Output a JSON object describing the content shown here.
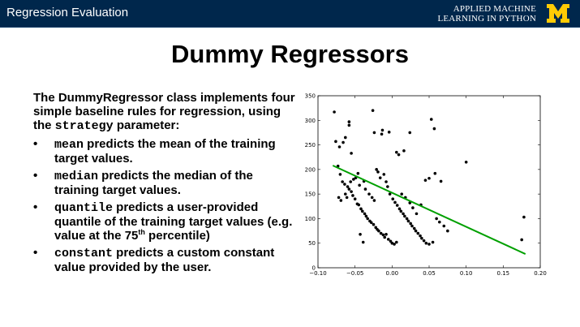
{
  "header": {
    "title": "Regression Evaluation",
    "course_line1": "APPLIED MACHINE",
    "course_line2": "LEARNING IN PYTHON",
    "logo_letter": "M",
    "colors": {
      "bar": "#00274c",
      "maize": "#ffcb05"
    }
  },
  "slide": {
    "title": "Dummy Regressors",
    "intro_1": "The DummyRegressor class implements four simple baseline rules for regression, using the ",
    "intro_code": "strategy",
    "intro_2": " parameter:",
    "bullets": [
      {
        "code": "mean",
        "text": " predicts the mean of the training target values."
      },
      {
        "code": "median",
        "text": " predicts the median of the training target values."
      },
      {
        "code": "quantile",
        "text": " predicts a user-provided quantile of the training target values (e.g. value at the 75",
        "sup": "th",
        "text_after": " percentile)"
      },
      {
        "code": "constant",
        "text": " predicts a custom constant value provided by the user."
      }
    ],
    "bullet_symbol": "•"
  },
  "chart_data": {
    "type": "scatter",
    "xlim": [
      -0.1,
      0.2
    ],
    "ylim": [
      0,
      350
    ],
    "xticks": [
      "−0.10",
      "−0.05",
      "0.00",
      "0.05",
      "0.10",
      "0.15",
      "0.20"
    ],
    "yticks": [
      "0",
      "50",
      "100",
      "150",
      "200",
      "250",
      "300",
      "350"
    ],
    "grid": false,
    "point_color": "#000000",
    "line_color": "#00a000",
    "fit_line": {
      "x": [
        -0.08,
        0.18
      ],
      "y": [
        208,
        28
      ]
    },
    "points": [
      [
        -0.078,
        317
      ],
      [
        -0.076,
        257
      ],
      [
        -0.071,
        246
      ],
      [
        -0.066,
        255
      ],
      [
        -0.063,
        265
      ],
      [
        -0.058,
        297
      ],
      [
        -0.058,
        290
      ],
      [
        -0.055,
        233
      ],
      [
        -0.026,
        320
      ],
      [
        -0.024,
        275
      ],
      [
        -0.014,
        272
      ],
      [
        -0.013,
        280
      ],
      [
        -0.004,
        276
      ],
      [
        0.006,
        235
      ],
      [
        0.009,
        230
      ],
      [
        0.016,
        238
      ],
      [
        0.024,
        275
      ],
      [
        0.053,
        302
      ],
      [
        0.057,
        283
      ],
      [
        0.1,
        215
      ],
      [
        -0.073,
        207
      ],
      [
        -0.07,
        190
      ],
      [
        -0.067,
        175
      ],
      [
        -0.064,
        170
      ],
      [
        -0.06,
        165
      ],
      [
        -0.058,
        160
      ],
      [
        -0.055,
        155
      ],
      [
        -0.053,
        147
      ],
      [
        -0.05,
        140
      ],
      [
        -0.047,
        130
      ],
      [
        -0.045,
        128
      ],
      [
        -0.042,
        120
      ],
      [
        -0.04,
        115
      ],
      [
        -0.037,
        110
      ],
      [
        -0.035,
        105
      ],
      [
        -0.033,
        100
      ],
      [
        -0.03,
        95
      ],
      [
        -0.028,
        92
      ],
      [
        -0.025,
        88
      ],
      [
        -0.022,
        82
      ],
      [
        -0.02,
        78
      ],
      [
        -0.018,
        75
      ],
      [
        -0.015,
        70
      ],
      [
        -0.012,
        67
      ],
      [
        -0.01,
        62
      ],
      [
        -0.005,
        58
      ],
      [
        -0.002,
        54
      ],
      [
        0.0,
        50
      ],
      [
        0.003,
        48
      ],
      [
        0.006,
        52
      ],
      [
        -0.072,
        143
      ],
      [
        -0.069,
        137
      ],
      [
        -0.063,
        150
      ],
      [
        -0.061,
        143
      ],
      [
        -0.056,
        175
      ],
      [
        -0.052,
        180
      ],
      [
        -0.049,
        183
      ],
      [
        -0.046,
        192
      ],
      [
        -0.044,
        168
      ],
      [
        -0.038,
        176
      ],
      [
        -0.036,
        160
      ],
      [
        -0.031,
        150
      ],
      [
        -0.027,
        143
      ],
      [
        -0.024,
        137
      ],
      [
        -0.021,
        200
      ],
      [
        -0.019,
        195
      ],
      [
        -0.016,
        183
      ],
      [
        -0.011,
        190
      ],
      [
        -0.008,
        175
      ],
      [
        -0.006,
        165
      ],
      [
        -0.003,
        150
      ],
      [
        0.001,
        140
      ],
      [
        0.004,
        133
      ],
      [
        0.007,
        127
      ],
      [
        0.01,
        120
      ],
      [
        0.012,
        115
      ],
      [
        0.015,
        110
      ],
      [
        0.017,
        105
      ],
      [
        0.02,
        100
      ],
      [
        0.022,
        95
      ],
      [
        0.025,
        90
      ],
      [
        0.027,
        85
      ],
      [
        0.03,
        80
      ],
      [
        0.032,
        75
      ],
      [
        0.035,
        70
      ],
      [
        0.038,
        65
      ],
      [
        0.04,
        60
      ],
      [
        0.043,
        55
      ],
      [
        0.046,
        50
      ],
      [
        0.05,
        48
      ],
      [
        0.055,
        52
      ],
      [
        0.06,
        100
      ],
      [
        0.064,
        93
      ],
      [
        0.07,
        85
      ],
      [
        0.075,
        75
      ],
      [
        0.045,
        178
      ],
      [
        0.05,
        182
      ],
      [
        0.058,
        192
      ],
      [
        0.066,
        176
      ],
      [
        0.028,
        122
      ],
      [
        0.024,
        132
      ],
      [
        0.018,
        143
      ],
      [
        0.013,
        150
      ],
      [
        0.039,
        128
      ],
      [
        0.033,
        110
      ],
      [
        0.178,
        103
      ],
      [
        0.175,
        57
      ],
      [
        -0.043,
        68
      ],
      [
        -0.039,
        52
      ],
      [
        -0.008,
        68
      ]
    ]
  }
}
